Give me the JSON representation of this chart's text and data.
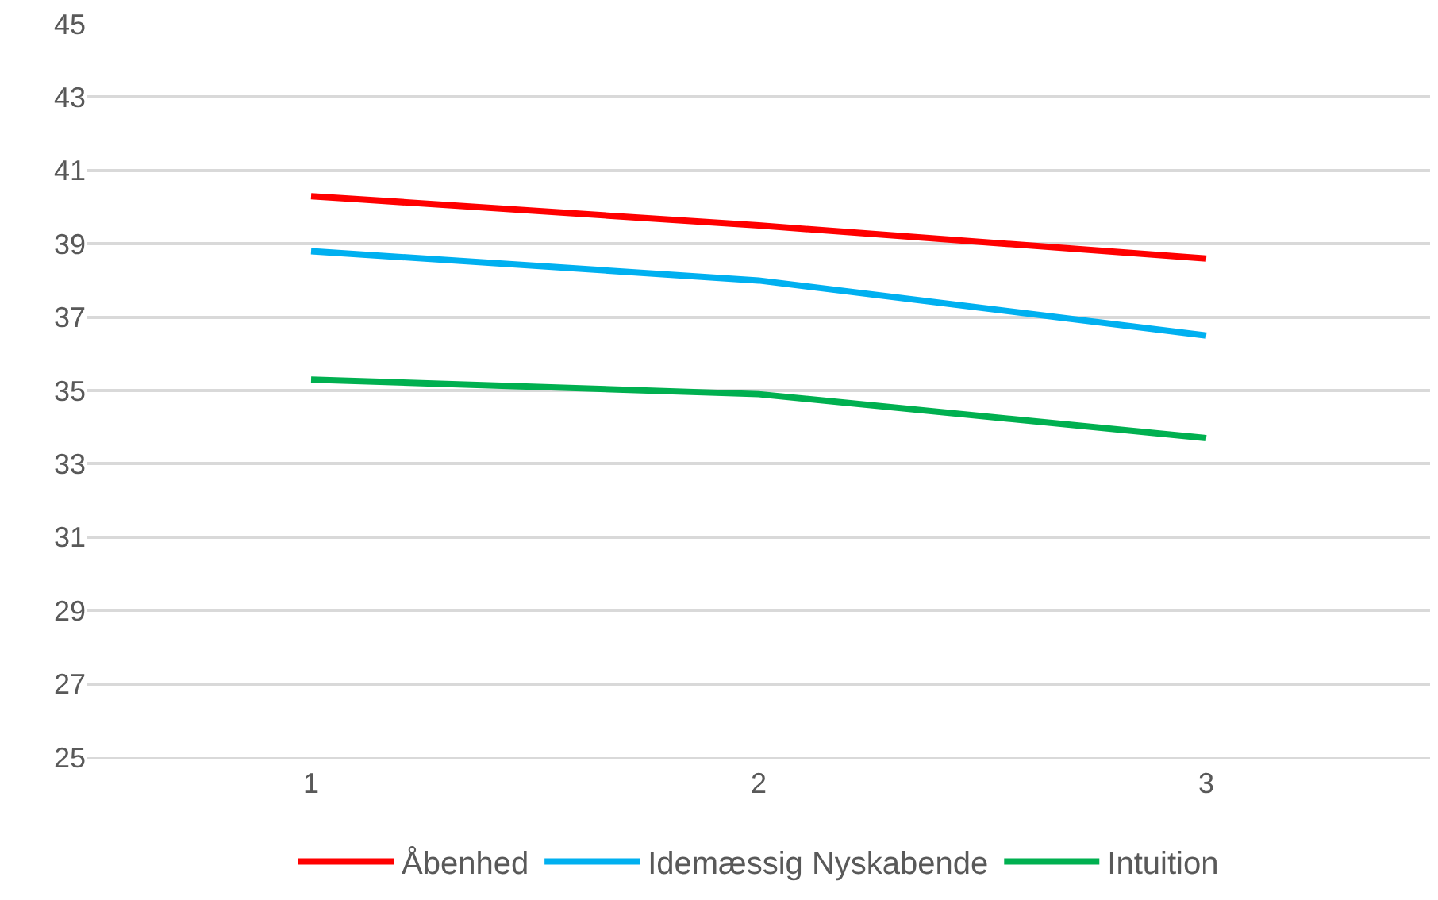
{
  "chart_data": {
    "type": "line",
    "categories": [
      "1",
      "2",
      "3"
    ],
    "series": [
      {
        "name": "Åbenhed",
        "color": "#ff0000",
        "values": [
          40.3,
          39.5,
          38.6
        ]
      },
      {
        "name": "Idemæssig Nyskabende",
        "color": "#00b0f0",
        "values": [
          38.8,
          38.0,
          36.5
        ]
      },
      {
        "name": "Intuition",
        "color": "#00b050",
        "values": [
          35.3,
          34.9,
          33.7
        ]
      }
    ],
    "ylim": [
      25,
      45
    ],
    "yticks": [
      25,
      27,
      29,
      31,
      33,
      35,
      37,
      39,
      41,
      43,
      45
    ],
    "grid": "y",
    "legend": "bottom",
    "marker": "none",
    "line_style": "solid"
  }
}
